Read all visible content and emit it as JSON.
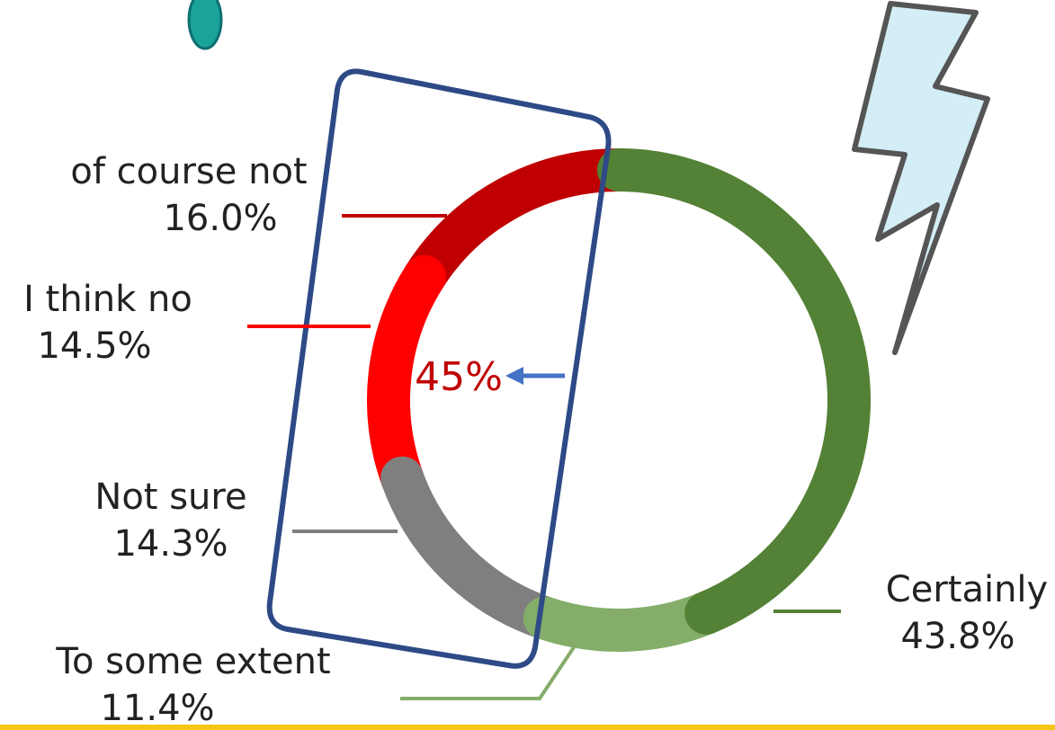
{
  "chart_data": {
    "type": "donut",
    "categories": [
      "Certainly",
      "To some extent",
      "Not sure",
      "I think no",
      "of course not"
    ],
    "values": [
      43.8,
      11.4,
      14.3,
      14.5,
      16.0
    ],
    "value_labels": [
      "43.8%",
      "11.4%",
      "14.3%",
      "14.5%",
      "16.0%"
    ],
    "colors": [
      "#538135",
      "#84ad6a",
      "#7f7f7f",
      "#ff0000",
      "#c00000"
    ],
    "annotation": "45%"
  }
}
